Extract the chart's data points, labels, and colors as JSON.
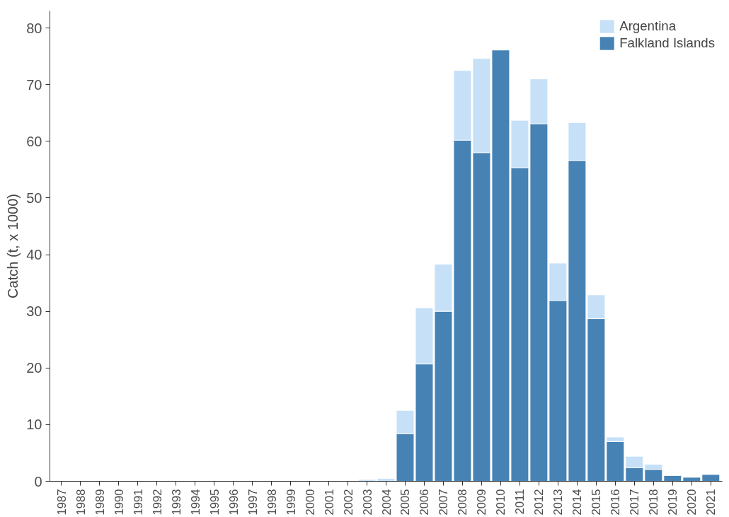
{
  "chart_data": {
    "type": "bar",
    "stacked": true,
    "ylabel": "Catch (t, x 1000)",
    "categories": [
      "1987",
      "1988",
      "1989",
      "1990",
      "1991",
      "1992",
      "1993",
      "1994",
      "1995",
      "1996",
      "1997",
      "1998",
      "1999",
      "2000",
      "2001",
      "2002",
      "2003",
      "2004",
      "2005",
      "2006",
      "2007",
      "2008",
      "2009",
      "2010",
      "2011",
      "2012",
      "2013",
      "2014",
      "2015",
      "2016",
      "2017",
      "2018",
      "2019",
      "2020",
      "2021"
    ],
    "series": [
      {
        "name": "Falkland Islands",
        "color": "#4682b4",
        "values": [
          null,
          null,
          null,
          null,
          null,
          null,
          null,
          null,
          null,
          null,
          null,
          null,
          null,
          null,
          null,
          null,
          null,
          null,
          8.4,
          20.7,
          30.0,
          60.2,
          58.0,
          76.1,
          55.3,
          63.1,
          31.9,
          56.6,
          28.7,
          7.0,
          2.4,
          2.1,
          1.0,
          0.7,
          1.2
        ]
      },
      {
        "name": "Argentina",
        "color": "#c6e0f8",
        "values": [
          null,
          null,
          null,
          null,
          null,
          null,
          null,
          null,
          null,
          null,
          null,
          null,
          null,
          null,
          null,
          null,
          0.3,
          0.5,
          4.1,
          9.9,
          8.3,
          12.3,
          16.6,
          null,
          8.4,
          7.9,
          6.6,
          6.7,
          4.2,
          0.8,
          2.0,
          0.9,
          null,
          null,
          null
        ]
      }
    ],
    "ylim": [
      0,
      83
    ],
    "yticks": [
      0,
      10,
      20,
      30,
      40,
      50,
      60,
      70,
      80
    ],
    "grid": false,
    "legend": "top right"
  }
}
